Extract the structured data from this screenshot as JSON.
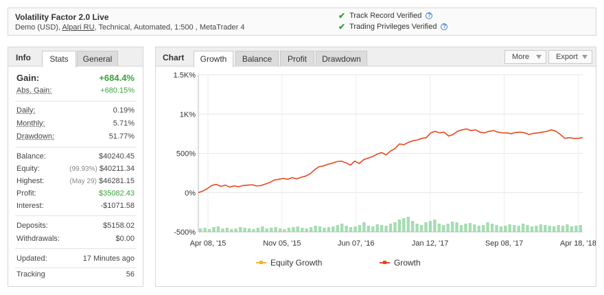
{
  "header": {
    "title": "Volatility Factor 2.0 Live",
    "sub_prefix": "Demo (USD),",
    "broker_link": "Alpari RU",
    "sub_suffix": ", Technical, Automated, 1:500 , MetaTrader 4",
    "verifications": [
      {
        "label": "Track Record Verified",
        "icon": "check-icon"
      },
      {
        "label": "Trading Privileges Verified",
        "icon": "check-icon"
      }
    ]
  },
  "left_panel": {
    "label": "Info",
    "tabs": [
      "Stats",
      "General"
    ],
    "active_tab": "Stats",
    "gain": {
      "label": "Gain:",
      "value": "+684.4%"
    },
    "abs_gain": {
      "label": "Abs. Gain:",
      "value": "+680.15%"
    },
    "daily": {
      "label": "Daily:",
      "value": "0.19%"
    },
    "monthly": {
      "label": "Monthly:",
      "value": "5.71%"
    },
    "drawdown": {
      "label": "Drawdown:",
      "value": "51.77%"
    },
    "balance": {
      "label": "Balance:",
      "value": "$40240.45"
    },
    "equity": {
      "label": "Equity:",
      "note": "(99.93%)",
      "value": "$40211.34"
    },
    "highest": {
      "label": "Highest:",
      "note": "(May 29)",
      "value": "$46281.15"
    },
    "profit": {
      "label": "Profit:",
      "value": "$35082.43"
    },
    "interest": {
      "label": "Interest:",
      "value": "-$1071.58"
    },
    "deposits": {
      "label": "Deposits:",
      "value": "$5158.02"
    },
    "withdrawals": {
      "label": "Withdrawals:",
      "value": "$0.00"
    },
    "updated": {
      "label": "Updated:",
      "value": "17 Minutes ago"
    },
    "tracking": {
      "label": "Tracking",
      "value": "56"
    }
  },
  "chart_panel": {
    "label": "Chart",
    "tabs": [
      "Growth",
      "Balance",
      "Profit",
      "Drawdown"
    ],
    "active_tab": "Growth",
    "more_label": "More",
    "export_label": "Export"
  },
  "colors": {
    "growth": "#e8461e",
    "equity": "#f0b429",
    "volume": "#8fd4a0",
    "positive": "#3aa33a",
    "verified": "#35a13a"
  },
  "chart_data": {
    "type": "line",
    "y_ticks": [
      "1.5K%",
      "1K%",
      "500%",
      "0%",
      "-500%"
    ],
    "ylim": [
      -500,
      1500
    ],
    "x_ticks": [
      "Apr 08, '15",
      "Nov 05, '15",
      "Jun 07, '16",
      "Jan 12, '17",
      "Sep 08, '17",
      "Apr 18, '18"
    ],
    "grid": true,
    "legend_position": "bottom",
    "series": [
      {
        "name": "Equity Growth",
        "values": []
      },
      {
        "name": "Growth",
        "values": [
          0,
          20,
          50,
          90,
          105,
          80,
          95,
          70,
          85,
          75,
          90,
          95,
          100,
          85,
          90,
          110,
          130,
          160,
          170,
          180,
          170,
          190,
          175,
          195,
          210,
          240,
          290,
          330,
          340,
          360,
          375,
          395,
          400,
          380,
          350,
          400,
          370,
          420,
          440,
          460,
          490,
          510,
          480,
          530,
          560,
          620,
          610,
          640,
          660,
          670,
          690,
          700,
          760,
          780,
          760,
          770,
          720,
          740,
          780,
          800,
          810,
          790,
          800,
          770,
          760,
          780,
          790,
          770,
          760,
          760,
          750,
          765,
          770,
          760,
          740,
          755,
          760,
          770,
          780,
          800,
          780,
          740,
          690,
          700,
          690,
          690,
          700
        ]
      }
    ],
    "volume_bars": [
      5,
      6,
      4,
      7,
      8,
      5,
      6,
      4,
      5,
      7,
      6,
      5,
      4,
      6,
      8,
      5,
      6,
      7,
      5,
      4,
      6,
      7,
      8,
      6,
      5,
      7,
      9,
      8,
      6,
      7,
      8,
      10,
      12,
      9,
      7,
      8,
      10,
      14,
      9,
      8,
      11,
      10,
      9,
      12,
      14,
      18,
      20,
      22,
      16,
      12,
      10,
      14,
      16,
      18,
      12,
      10,
      12,
      15,
      14,
      10,
      12,
      13,
      11,
      9,
      10,
      14,
      12,
      10,
      8,
      9,
      11,
      10,
      9,
      12,
      10,
      8,
      9,
      11,
      10,
      9,
      8,
      10,
      9,
      11,
      8,
      9,
      10
    ]
  }
}
